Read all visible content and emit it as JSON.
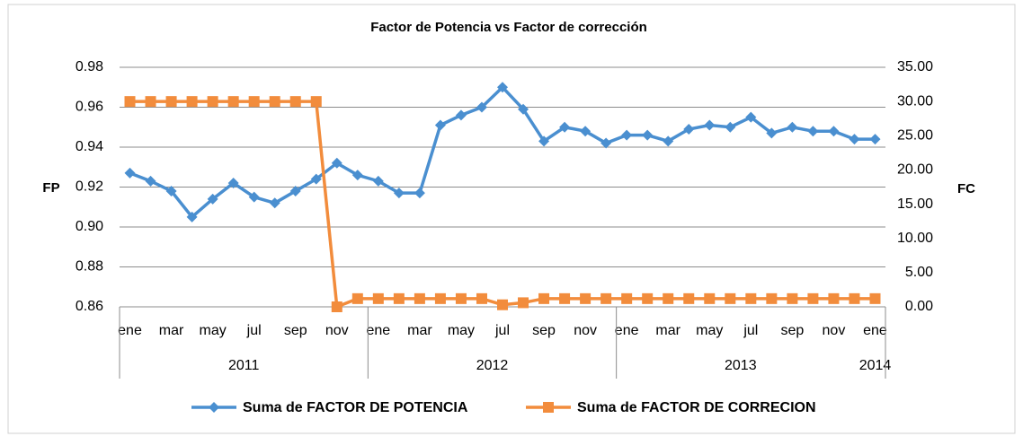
{
  "chart_data": {
    "type": "line",
    "title": "Factor de Potencia vs Factor de corrección",
    "ylabel": "FP",
    "y2label": "FC",
    "categories": [
      "ene",
      null,
      "mar",
      null,
      "may",
      null,
      "jul",
      null,
      "sep",
      null,
      "nov",
      null,
      "ene",
      null,
      "mar",
      null,
      "may",
      null,
      "jul",
      null,
      "sep",
      null,
      "nov",
      null,
      "ene",
      null,
      "mar",
      null,
      "may",
      null,
      "jul",
      null,
      "sep",
      null,
      "nov",
      null,
      "ene"
    ],
    "years": [
      "2011",
      "2012",
      "2013",
      "2014"
    ],
    "ylim": [
      0.86,
      0.98
    ],
    "yticks": [
      0.86,
      0.88,
      {
        "value": 0.9,
        "label": "0.90"
      },
      0.92,
      0.94,
      0.96,
      0.98
    ],
    "y2lim": [
      0,
      35
    ],
    "y2ticks": [
      {
        "value": 0,
        "label": "0.00"
      },
      {
        "value": 5,
        "label": "5.00"
      },
      {
        "value": 10,
        "label": "10.00"
      },
      {
        "value": 15,
        "label": "15.00"
      },
      {
        "value": 20,
        "label": "20.00"
      },
      {
        "value": 25,
        "label": "25.00"
      },
      {
        "value": 30,
        "label": "30.00"
      },
      {
        "value": 35,
        "label": "35.00"
      }
    ],
    "grid": true,
    "series": [
      {
        "name": "Suma de FACTOR DE POTENCIA",
        "color": "#4a8fd0",
        "marker": "diamond",
        "values": [
          0.927,
          0.923,
          0.918,
          0.905,
          0.914,
          0.922,
          0.915,
          0.912,
          0.918,
          0.924,
          0.932,
          0.926,
          0.923,
          0.917,
          0.917,
          0.951,
          0.956,
          0.96,
          0.97,
          0.959,
          0.943,
          0.95,
          0.948,
          0.942,
          0.946,
          0.946,
          0.943,
          0.949,
          0.951,
          0.95,
          0.955,
          0.947,
          0.95,
          0.948,
          0.948,
          0.944,
          0.944
        ]
      },
      {
        "name": "Suma de FACTOR DE CORRECION",
        "color": "#f28c3c",
        "marker": "square",
        "axis": "y2",
        "values": [
          30,
          30,
          30,
          30,
          30,
          30,
          30,
          30,
          30,
          30,
          0,
          1.2,
          1.2,
          1.2,
          1.2,
          1.2,
          1.2,
          1.2,
          0.3,
          0.6,
          1.2,
          1.2,
          1.2,
          1.2,
          1.2,
          1.2,
          1.2,
          1.2,
          1.2,
          1.2,
          1.2,
          1.2,
          1.2,
          1.2,
          1.2,
          1.2,
          1.2
        ]
      }
    ]
  }
}
